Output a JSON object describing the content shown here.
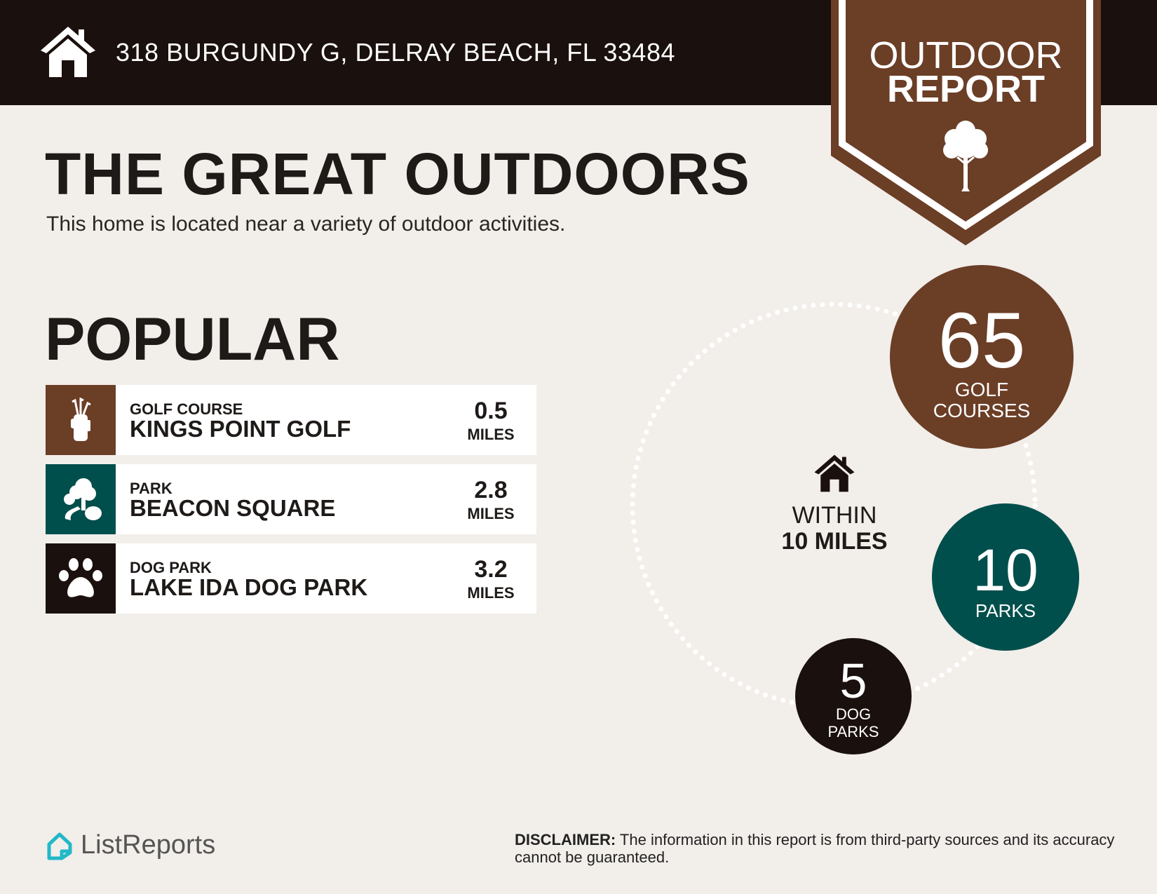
{
  "header": {
    "address": "318 BURGUNDY G, DELRAY BEACH, FL 33484",
    "home_icon": "house-icon"
  },
  "badge": {
    "line1": "OUTDOOR",
    "line2": "REPORT",
    "icon": "tree-icon"
  },
  "main": {
    "title": "THE GREAT OUTDOORS",
    "subtitle": "This home is located near a variety of outdoor activities."
  },
  "popular": {
    "heading": "POPULAR",
    "items": [
      {
        "category": "GOLF COURSE",
        "name": "KINGS POINT GOLF",
        "distance": "0.5",
        "unit": "MILES",
        "icon": "golf-bag-icon",
        "color": "#6b3e26"
      },
      {
        "category": "PARK",
        "name": "BEACON SQUARE",
        "distance": "2.8",
        "unit": "MILES",
        "icon": "park-trees-icon",
        "color": "#004f4c"
      },
      {
        "category": "DOG PARK",
        "name": "LAKE IDA DOG PARK",
        "distance": "3.2",
        "unit": "MILES",
        "icon": "paw-icon",
        "color": "#1a100d"
      }
    ]
  },
  "radius": {
    "line1": "WITHIN",
    "line2": "10 MILES",
    "icon": "house-icon"
  },
  "counts": [
    {
      "value": "65",
      "line1": "GOLF",
      "line2": "COURSES",
      "color": "#6b3e26"
    },
    {
      "value": "10",
      "line1": "PARKS",
      "line2": "",
      "color": "#004f4c"
    },
    {
      "value": "5",
      "line1": "DOG",
      "line2": "PARKS",
      "color": "#1a100d"
    }
  ],
  "footer": {
    "logo": "ListReports",
    "disclaimer_label": "DISCLAIMER:",
    "disclaimer_text": " The information in this report is from third-party sources and its accuracy cannot be guaranteed."
  }
}
